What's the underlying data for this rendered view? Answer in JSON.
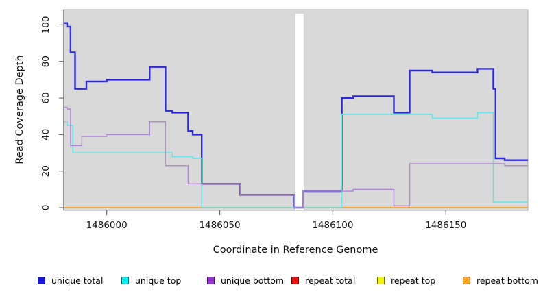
{
  "chart_data": {
    "type": "line",
    "subtype": "step",
    "title": "",
    "xlabel": "Coordinate in Reference Genome",
    "ylabel": "Read Coverage Depth",
    "xlim": [
      1485981,
      1486186.3
    ],
    "ylim": [
      -1.5,
      108.4
    ],
    "grid": false,
    "legend_position": "bottom",
    "panel_bg": "#d9d9d9",
    "axis_line_color": "#4d4d4d",
    "panel_border_color": "#a8a8a8",
    "tick_color": "#666666",
    "masked_region": {
      "x_start": 1486083.5,
      "x_end": 1486087.1,
      "color": "#ffffff"
    },
    "x_ticks": [
      {
        "value": 1486000,
        "label": "1486000"
      },
      {
        "value": 1486050,
        "label": "1486050"
      },
      {
        "value": 1486100,
        "label": "1486100"
      },
      {
        "value": 1486150,
        "label": "1486150"
      }
    ],
    "y_ticks": [
      {
        "value": 0,
        "label": "0"
      },
      {
        "value": 20,
        "label": "20"
      },
      {
        "value": 40,
        "label": "40"
      },
      {
        "value": 60,
        "label": "60"
      },
      {
        "value": 80,
        "label": "80"
      },
      {
        "value": 100,
        "label": "100"
      }
    ],
    "series": [
      {
        "name": "unique total",
        "color": "#2a2ade",
        "legend_color": "#1414e0",
        "line_width": 2.4,
        "points": [
          [
            1485981,
            101
          ],
          [
            1485982.5,
            99
          ],
          [
            1485984,
            85
          ],
          [
            1485986,
            65
          ],
          [
            1485991,
            69
          ],
          [
            1486000,
            70
          ],
          [
            1486019,
            77
          ],
          [
            1486026,
            53
          ],
          [
            1486029,
            52
          ],
          [
            1486036,
            42
          ],
          [
            1486038,
            40
          ],
          [
            1486042,
            13
          ],
          [
            1486059,
            7
          ],
          [
            1486083,
            0
          ],
          [
            1486087,
            9
          ],
          [
            1486104,
            60
          ],
          [
            1486109,
            61
          ],
          [
            1486127,
            52
          ],
          [
            1486134,
            75
          ],
          [
            1486144,
            74
          ],
          [
            1486164,
            76
          ],
          [
            1486171,
            65
          ],
          [
            1486172,
            27
          ],
          [
            1486176,
            26
          ]
        ]
      },
      {
        "name": "unique top",
        "color": "#63e2ea",
        "legend_color": "#00f0f0",
        "line_width": 1.4,
        "points": [
          [
            1485981,
            47
          ],
          [
            1485982.5,
            45
          ],
          [
            1485985,
            30
          ],
          [
            1486029,
            28
          ],
          [
            1486038,
            27
          ],
          [
            1486042,
            0
          ],
          [
            1486104,
            51
          ],
          [
            1486144,
            49
          ],
          [
            1486164,
            52
          ],
          [
            1486171,
            3
          ]
        ]
      },
      {
        "name": "unique bottom",
        "color": "#b286d8",
        "legend_color": "#9b30d9",
        "line_width": 1.4,
        "points": [
          [
            1485981,
            55
          ],
          [
            1485982.5,
            54
          ],
          [
            1485984,
            34
          ],
          [
            1485989,
            39
          ],
          [
            1486000,
            40
          ],
          [
            1486019,
            47
          ],
          [
            1486026,
            23
          ],
          [
            1486036,
            13
          ],
          [
            1486059,
            7
          ],
          [
            1486083,
            0
          ],
          [
            1486087,
            9
          ],
          [
            1486109,
            10
          ],
          [
            1486127,
            1
          ],
          [
            1486134,
            24
          ],
          [
            1486176,
            23
          ]
        ]
      },
      {
        "name": "repeat total",
        "color": "#ee2222",
        "legend_color": "#ee1111",
        "line_width": 1.4,
        "points": [
          [
            1485981,
            0
          ]
        ]
      },
      {
        "name": "repeat top",
        "color": "#f2f200",
        "legend_color": "#f5f500",
        "line_width": 1.4,
        "points": [
          [
            1485981,
            0
          ]
        ]
      },
      {
        "name": "repeat bottom",
        "color": "#ff9f1a",
        "legend_color": "#ffa519",
        "line_width": 1.6,
        "points": [
          [
            1485981,
            0
          ]
        ]
      }
    ]
  }
}
